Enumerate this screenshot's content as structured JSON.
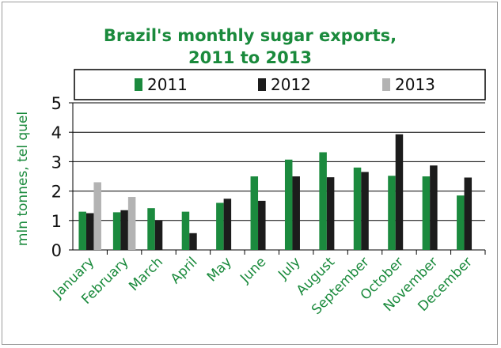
{
  "colors": {
    "title": "#1a8a3c",
    "axis_text": "#1a8a3c",
    "series_2011": "#1b8a3e",
    "series_2012": "#1c1c1c",
    "series_2013": "#b3b3b3",
    "grid": "#000000"
  },
  "chart_data": {
    "type": "bar",
    "title_line1": "Brazil's monthly sugar exports,",
    "title_line2": "2011 to 2013",
    "ylabel": "mln tonnes, tel quel",
    "xlabel": "",
    "ylim": [
      0,
      5
    ],
    "yticks": [
      0,
      1,
      2,
      3,
      4,
      5
    ],
    "grid": true,
    "legend_position": "top",
    "categories": [
      "January",
      "February",
      "March",
      "April",
      "May",
      "June",
      "July",
      "August",
      "September",
      "October",
      "November",
      "December"
    ],
    "series": [
      {
        "name": "2011",
        "values": [
          1.3,
          1.28,
          1.42,
          1.3,
          1.6,
          2.5,
          3.07,
          3.32,
          2.8,
          2.52,
          2.5,
          1.85
        ]
      },
      {
        "name": "2012",
        "values": [
          1.25,
          1.35,
          1.0,
          0.57,
          1.74,
          1.67,
          2.5,
          2.47,
          2.65,
          3.93,
          2.87,
          2.46
        ]
      },
      {
        "name": "2013",
        "values": [
          2.3,
          1.8,
          null,
          null,
          null,
          null,
          null,
          null,
          null,
          null,
          null,
          null
        ]
      }
    ]
  }
}
